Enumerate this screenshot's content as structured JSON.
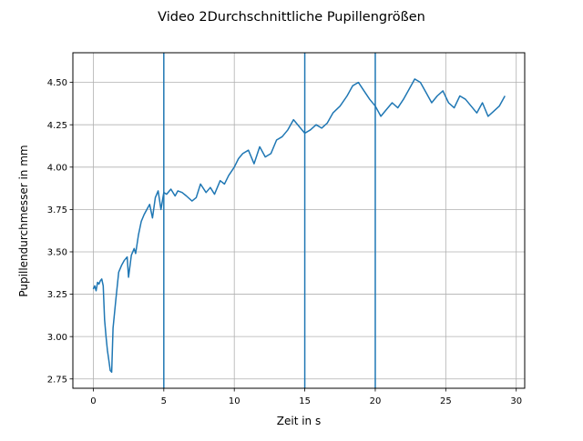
{
  "chart_data": {
    "type": "line",
    "title": "Video 2Durchschnittliche Pupillengrößen",
    "xlabel": "Zeit in s",
    "ylabel": "Pupillendurchmesser in mm",
    "xlim": [
      -1.45,
      30.6
    ],
    "ylim": [
      2.695,
      4.675
    ],
    "xticks": [
      0,
      5,
      10,
      15,
      20,
      25,
      30
    ],
    "xtick_labels": [
      "0",
      "5",
      "10",
      "15",
      "20",
      "25",
      "30"
    ],
    "yticks": [
      2.75,
      3.0,
      3.25,
      3.5,
      3.75,
      4.0,
      4.25,
      4.5
    ],
    "ytick_labels": [
      "2.75",
      "3.00",
      "3.25",
      "3.50",
      "3.75",
      "4.00",
      "4.25",
      "4.50"
    ],
    "grid": true,
    "vlines": [
      5,
      15,
      20
    ],
    "series": [
      {
        "color": "#1f77b4",
        "x": [
          0.0,
          0.1,
          0.2,
          0.3,
          0.4,
          0.5,
          0.6,
          0.7,
          0.8,
          0.9,
          1.0,
          1.1,
          1.2,
          1.3,
          1.4,
          1.6,
          1.8,
          2.0,
          2.2,
          2.4,
          2.5,
          2.7,
          2.9,
          3.0,
          3.2,
          3.4,
          3.6,
          3.8,
          4.0,
          4.2,
          4.4,
          4.6,
          4.8,
          5.0,
          5.2,
          5.5,
          5.8,
          6.0,
          6.3,
          6.6,
          7.0,
          7.3,
          7.6,
          8.0,
          8.3,
          8.6,
          9.0,
          9.3,
          9.6,
          10.0,
          10.3,
          10.6,
          11.0,
          11.4,
          11.8,
          12.2,
          12.6,
          13.0,
          13.4,
          13.8,
          14.2,
          14.6,
          15.0,
          15.4,
          15.8,
          16.2,
          16.6,
          17.0,
          17.5,
          18.0,
          18.4,
          18.8,
          19.2,
          19.6,
          20.0,
          20.4,
          20.8,
          21.2,
          21.6,
          22.0,
          22.4,
          22.8,
          23.2,
          23.6,
          24.0,
          24.4,
          24.8,
          25.2,
          25.6,
          26.0,
          26.4,
          26.8,
          27.2,
          27.6,
          28.0,
          28.4,
          28.8,
          29.2
        ],
        "y": [
          3.28,
          3.3,
          3.27,
          3.32,
          3.31,
          3.33,
          3.34,
          3.3,
          3.1,
          3.0,
          2.92,
          2.86,
          2.8,
          2.79,
          3.05,
          3.22,
          3.38,
          3.42,
          3.45,
          3.47,
          3.35,
          3.48,
          3.52,
          3.49,
          3.6,
          3.68,
          3.72,
          3.75,
          3.78,
          3.7,
          3.82,
          3.86,
          3.75,
          3.85,
          3.84,
          3.87,
          3.83,
          3.86,
          3.85,
          3.83,
          3.8,
          3.82,
          3.9,
          3.85,
          3.88,
          3.84,
          3.92,
          3.9,
          3.95,
          4.0,
          4.05,
          4.08,
          4.1,
          4.02,
          4.12,
          4.06,
          4.08,
          4.16,
          4.18,
          4.22,
          4.28,
          4.24,
          4.2,
          4.22,
          4.25,
          4.23,
          4.26,
          4.32,
          4.36,
          4.42,
          4.48,
          4.5,
          4.45,
          4.4,
          4.36,
          4.3,
          4.34,
          4.38,
          4.35,
          4.4,
          4.46,
          4.52,
          4.5,
          4.44,
          4.38,
          4.42,
          4.45,
          4.38,
          4.35,
          4.42,
          4.4,
          4.36,
          4.32,
          4.38,
          4.3,
          4.33,
          4.36,
          4.42
        ]
      }
    ]
  }
}
